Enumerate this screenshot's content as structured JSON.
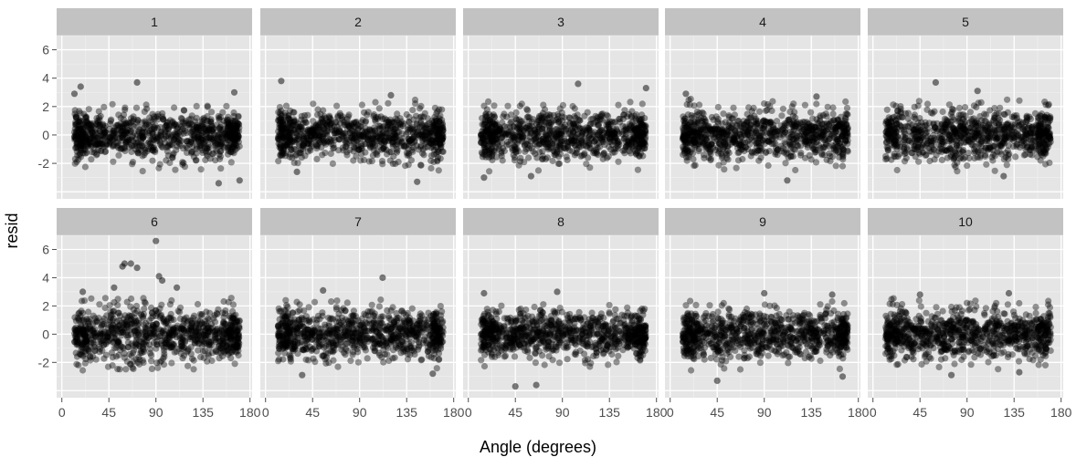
{
  "chart_data": {
    "type": "scatter",
    "facet_layout": {
      "rows": 2,
      "cols": 5
    },
    "xlabel": "Angle (degrees)",
    "ylabel": "resid",
    "xlim": [
      -5,
      182
    ],
    "ylim": [
      -4.5,
      7.0
    ],
    "x_ticks": [
      0,
      45,
      90,
      135,
      180
    ],
    "y_ticks": [
      6,
      4,
      2,
      0,
      -2
    ],
    "x_tick_labels": [
      "0",
      "45",
      "90",
      "135",
      "180"
    ],
    "y_tick_labels": [
      "6",
      "4",
      "2",
      "0",
      "-2"
    ],
    "grid": true,
    "point_color": "#000000",
    "point_opacity": 0.4,
    "panel_background": "#e5e5e5",
    "strip_background": "#c2c2c2",
    "angle_range": [
      12,
      170
    ],
    "panels": [
      {
        "label": "1",
        "point_count": 900,
        "outliers": [
          [
            18,
            3.4
          ],
          [
            72,
            3.7
          ],
          [
            150,
            -3.4
          ],
          [
            170,
            -3.2
          ],
          [
            165,
            3.0
          ],
          [
            12,
            2.9
          ]
        ]
      },
      {
        "label": "2",
        "point_count": 900,
        "outliers": [
          [
            15,
            3.8
          ],
          [
            145,
            -3.3
          ],
          [
            120,
            2.8
          ],
          [
            30,
            -2.6
          ]
        ]
      },
      {
        "label": "3",
        "point_count": 900,
        "outliers": [
          [
            105,
            3.6
          ],
          [
            170,
            3.3
          ],
          [
            15,
            -3.0
          ],
          [
            60,
            -2.9
          ]
        ]
      },
      {
        "label": "4",
        "point_count": 900,
        "outliers": [
          [
            112,
            -3.2
          ],
          [
            15,
            2.9
          ],
          [
            140,
            2.7
          ]
        ]
      },
      {
        "label": "5",
        "point_count": 900,
        "outliers": [
          [
            60,
            3.7
          ],
          [
            100,
            3.1
          ],
          [
            125,
            -2.9
          ]
        ]
      },
      {
        "label": "6",
        "point_count": 900,
        "outliers": [
          [
            90,
            6.6
          ],
          [
            60,
            5.0
          ],
          [
            66,
            5.0
          ],
          [
            58,
            4.8
          ],
          [
            72,
            4.7
          ],
          [
            93,
            4.1
          ],
          [
            96,
            3.8
          ],
          [
            50,
            3.3
          ],
          [
            110,
            3.3
          ],
          [
            20,
            3.0
          ]
        ]
      },
      {
        "label": "7",
        "point_count": 900,
        "outliers": [
          [
            112,
            4.0
          ],
          [
            55,
            3.1
          ],
          [
            35,
            -2.9
          ],
          [
            160,
            -2.8
          ]
        ]
      },
      {
        "label": "8",
        "point_count": 900,
        "outliers": [
          [
            45,
            -3.7
          ],
          [
            65,
            -3.6
          ],
          [
            15,
            2.9
          ],
          [
            85,
            3.0
          ]
        ]
      },
      {
        "label": "9",
        "point_count": 900,
        "outliers": [
          [
            45,
            -3.3
          ],
          [
            90,
            2.9
          ],
          [
            165,
            -3.0
          ],
          [
            155,
            2.8
          ]
        ]
      },
      {
        "label": "10",
        "point_count": 900,
        "outliers": [
          [
            130,
            2.9
          ],
          [
            45,
            2.8
          ],
          [
            75,
            -2.9
          ],
          [
            140,
            -2.7
          ]
        ]
      }
    ]
  }
}
